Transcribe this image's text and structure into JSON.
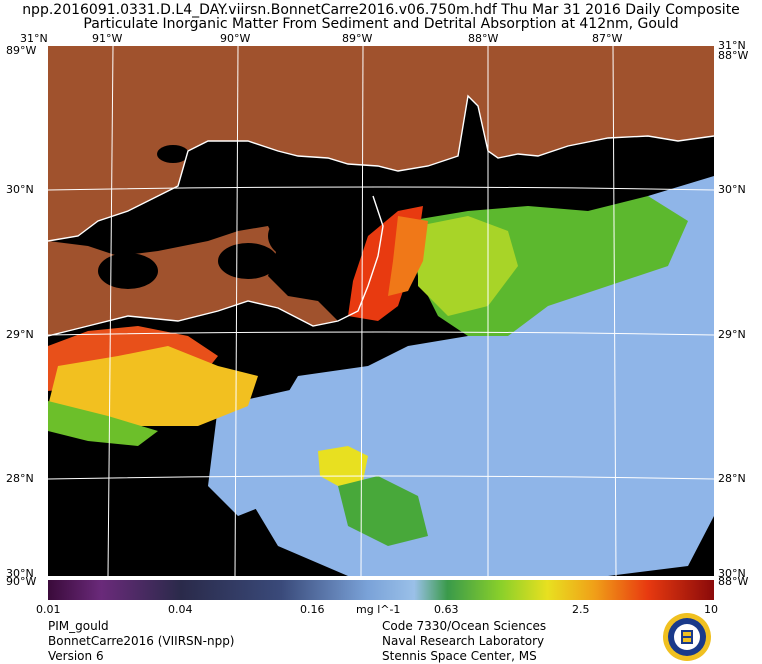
{
  "title": {
    "line1": "npp.2016091.0331.D.L4_DAY.viirsn.BonnetCarre2016.v06.750m.hdf     Thu Mar 31 2016 Daily Composite",
    "line2": "Particulate Inorganic Matter From Sediment and Detrital Absorption at 412nm, Gould"
  },
  "lon_labels": [
    "91°W",
    "90°W",
    "89°W",
    "88°W",
    "87°W"
  ],
  "corner_top_left": "31°N",
  "corner_top_left_lon": "89°W",
  "corner_top_right": "31°N",
  "corner_top_right_lon": "88°W",
  "corner_bottom_left": "30°N",
  "corner_bottom_left_lon": "90°W",
  "corner_bottom_right": "30°N",
  "corner_bottom_right_lon": "88°W",
  "lat_labels": [
    "30°N",
    "29°N",
    "28°N"
  ],
  "colors": {
    "land": "#a0522d",
    "nodata": "#000000",
    "coast": "#ffffff"
  },
  "colorbar": {
    "ticks": [
      "0.01",
      "0.04",
      "0.16",
      "0.63",
      "2.5",
      "10"
    ],
    "units": "mg l^-1",
    "scale": "log"
  },
  "footer": {
    "left1": "PIM_gould",
    "left2": "BonnetCarre2016 (VIIRSN-npp)",
    "left3": "Version 6",
    "right1": "Code 7330/Ocean Sciences",
    "right2": "Naval Research Laboratory",
    "right3": "Stennis Space Center, MS"
  },
  "logo_icon": "nrl-seal-icon"
}
